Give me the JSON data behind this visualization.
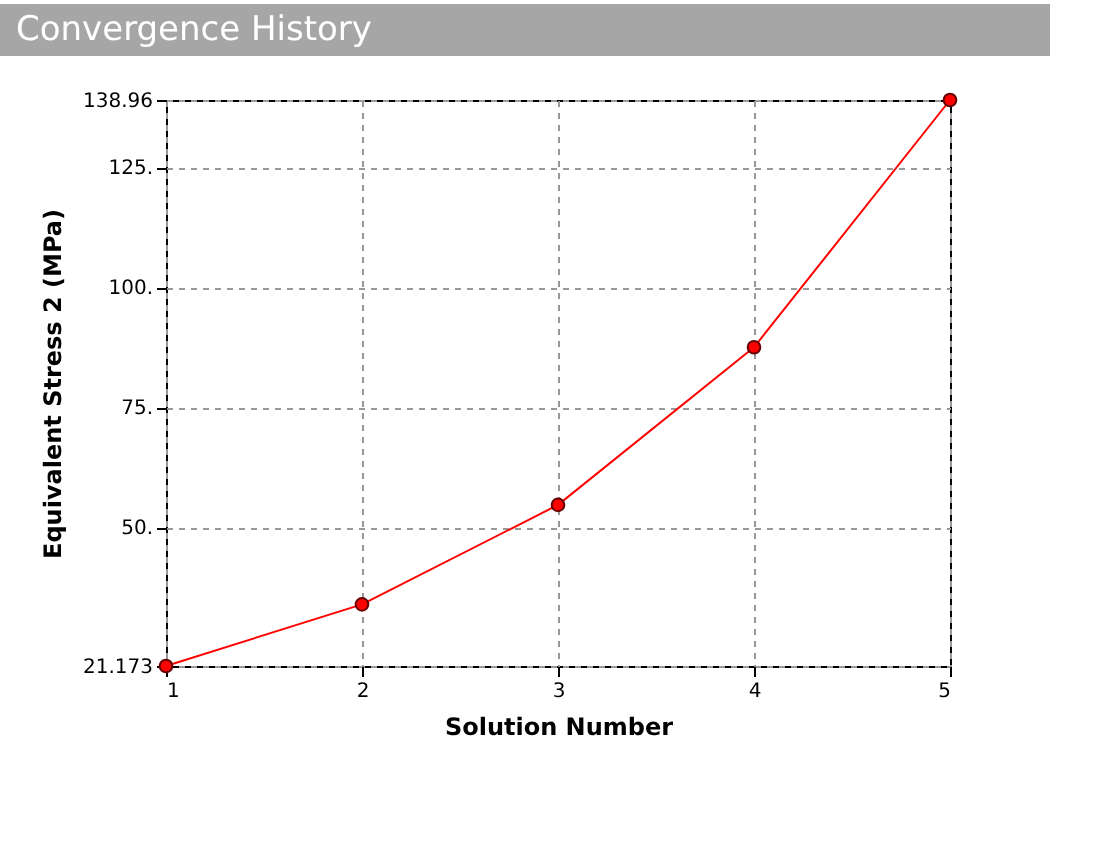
{
  "chart_data": {
    "type": "line",
    "title": "Convergence History",
    "xlabel": "Solution Number",
    "ylabel": "Equivalent Stress 2 (MPa)",
    "x": [
      1,
      2,
      3,
      4,
      5
    ],
    "series": [
      {
        "color": "#ff0000",
        "values": [
          21.173,
          34.0,
          54.7,
          87.5,
          138.96
        ]
      }
    ],
    "xlim": [
      1,
      5
    ],
    "xticks": [
      1,
      2,
      3,
      4,
      5
    ],
    "ylim": [
      21.173,
      138.96
    ],
    "yticks": [
      {
        "value": 21.173,
        "label": "21.173"
      },
      {
        "value": 50,
        "label": "50."
      },
      {
        "value": 75,
        "label": "75."
      },
      {
        "value": 100,
        "label": "100."
      },
      {
        "value": 125,
        "label": "125."
      },
      {
        "value": 138.96,
        "label": "138.96"
      }
    ],
    "grid": true,
    "marker": "circle",
    "line_style": "solid"
  }
}
